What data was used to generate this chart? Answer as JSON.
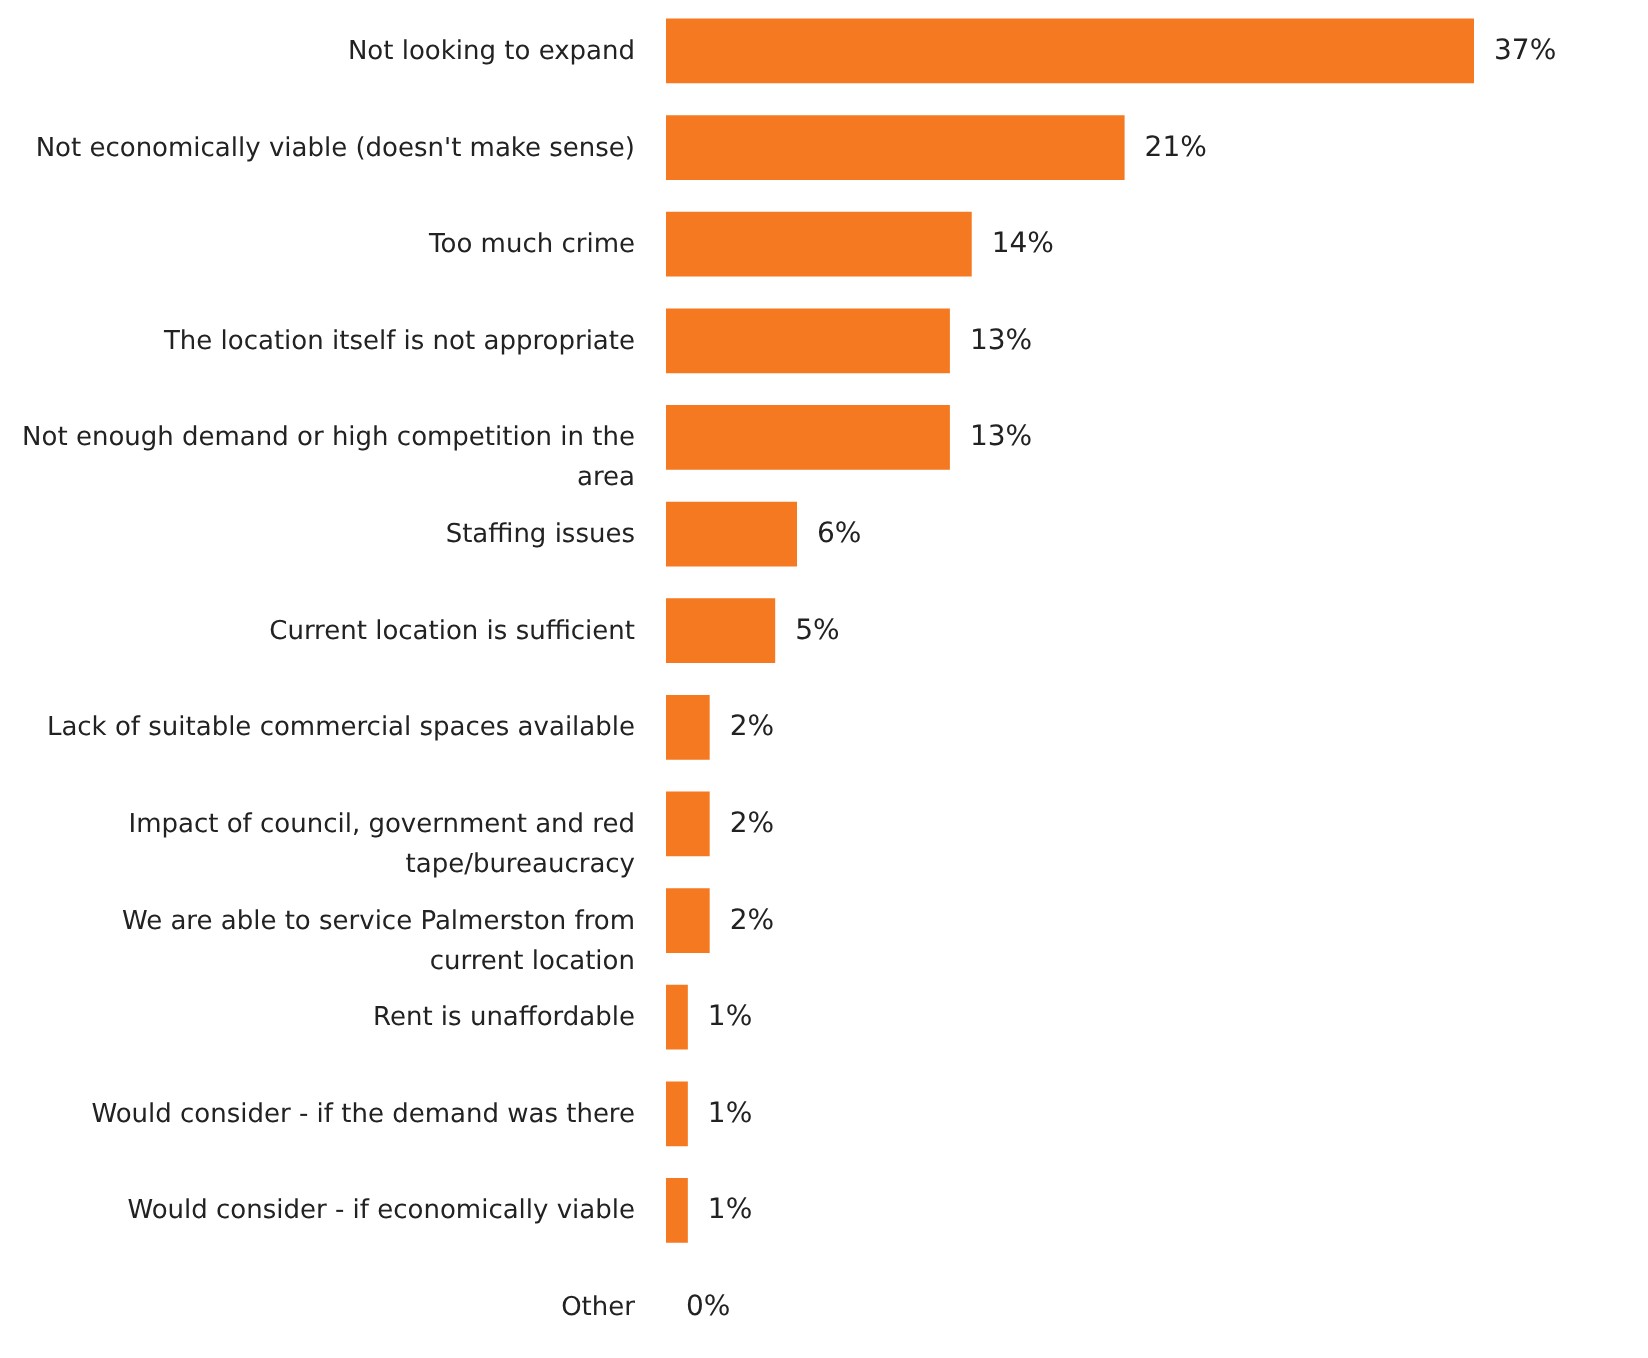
{
  "chart_data": {
    "type": "bar",
    "orientation": "horizontal",
    "categories": [
      "Not looking to expand",
      "Not economically viable (doesn't make sense)",
      "Too much crime",
      "The location itself is not appropriate",
      "Not enough demand or high competition in the area",
      "Staffing issues",
      "Current location is sufficient",
      "Lack of suitable commercial spaces available",
      "Impact of council, government and red tape/bureaucracy",
      "We are able to service Palmerston from current location",
      "Rent is unaffordable",
      "Would consider - if the demand was there",
      "Would consider - if economically viable",
      "Other"
    ],
    "values": [
      37,
      21,
      14,
      13,
      13,
      6,
      5,
      2,
      2,
      2,
      1,
      1,
      1,
      0
    ],
    "value_labels": [
      "37%",
      "21%",
      "14%",
      "13%",
      "13%",
      "6%",
      "5%",
      "2%",
      "2%",
      "2%",
      "1%",
      "1%",
      "1%",
      "0%"
    ],
    "color": "#f47920"
  }
}
